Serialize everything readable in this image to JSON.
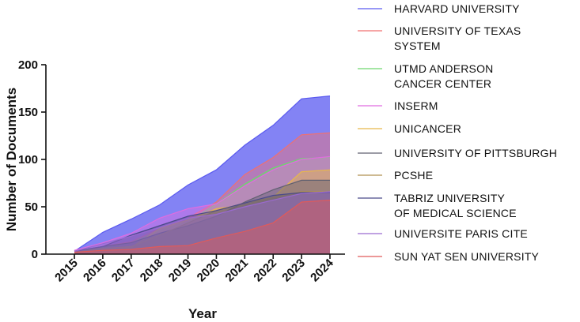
{
  "chart_data": {
    "type": "area",
    "x": [
      "2015",
      "2016",
      "2017",
      "2018",
      "2019",
      "2020",
      "2021",
      "2022",
      "2023",
      "2024"
    ],
    "xlabel": "Year",
    "ylabel": "Number of Documents",
    "ylim": [
      0,
      200
    ],
    "yticks": [
      "0",
      "50",
      "100",
      "150",
      "200"
    ],
    "grid": false,
    "legend_placement": "right",
    "series": [
      {
        "name": "HARVARD UNIVERSITY",
        "label_lines": [
          "HARVARD UNIVERSITY"
        ],
        "color": "#5a5af0",
        "values": [
          3,
          23,
          37,
          52,
          73,
          89,
          115,
          136,
          164,
          167
        ]
      },
      {
        "name": "UNIVERSITY OF TEXAS SYSTEM",
        "label_lines": [
          "UNIVERSITY OF TEXAS",
          "SYSTEM"
        ],
        "color": "#f07070",
        "values": [
          3,
          8,
          13,
          27,
          38,
          55,
          84,
          102,
          126,
          128
        ]
      },
      {
        "name": "UTMD ANDERSON CANCER CENTER",
        "label_lines": [
          "UTMD ANDERSON",
          "CANCER CENTER"
        ],
        "color": "#6ed86e",
        "values": [
          3,
          7,
          12,
          25,
          34,
          53,
          74,
          91,
          101,
          102
        ]
      },
      {
        "name": "INSERM",
        "label_lines": [
          "INSERM"
        ],
        "color": "#e06ce0",
        "values": [
          4,
          12,
          22,
          38,
          48,
          53,
          72,
          89,
          100,
          103
        ]
      },
      {
        "name": "UNICANCER",
        "label_lines": [
          "UNICANCER"
        ],
        "color": "#e8b84a",
        "values": [
          3,
          6,
          7,
          27,
          36,
          48,
          52,
          60,
          87,
          89
        ]
      },
      {
        "name": "UNIVERSITY OF PITTSBURGH",
        "label_lines": [
          "UNIVERSITY OF PITTSBURGH"
        ],
        "color": "#606070",
        "values": [
          3,
          8,
          12,
          22,
          30,
          40,
          55,
          68,
          78,
          78
        ]
      },
      {
        "name": "PCSHE",
        "label_lines": [
          "PCSHE"
        ],
        "color": "#b09050",
        "values": [
          3,
          6,
          8,
          20,
          33,
          46,
          54,
          60,
          66,
          66
        ]
      },
      {
        "name": "TABRIZ UNIVERSITY OF MEDICAL SCIENCE",
        "label_lines": [
          "TABRIZ UNIVERSITY",
          "OF MEDICAL SCIENCE"
        ],
        "color": "#4a4a8a",
        "values": [
          3,
          8,
          20,
          30,
          40,
          46,
          54,
          62,
          65,
          65
        ]
      },
      {
        "name": "UNIVERSITE PARIS CITE",
        "label_lines": [
          "UNIVERSITE PARIS CITE"
        ],
        "color": "#9a6ad0",
        "values": [
          3,
          11,
          19,
          28,
          38,
          42,
          50,
          57,
          64,
          66
        ]
      },
      {
        "name": "SUN YAT SEN UNIVERSITY",
        "label_lines": [
          "SUN YAT SEN UNIVERSITY"
        ],
        "color": "#e05a5a",
        "values": [
          2,
          4,
          5,
          8,
          9,
          17,
          24,
          33,
          55,
          57
        ]
      }
    ]
  }
}
